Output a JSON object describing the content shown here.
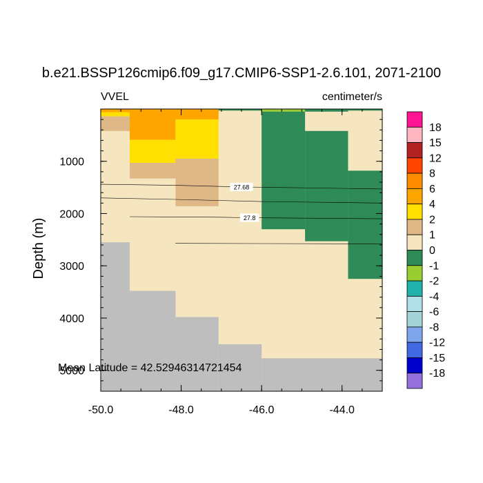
{
  "chart_data": {
    "type": "heatmap",
    "title": "b.e21.BSSP126cmip6.f09_g17.CMIP6-SSP1-2.6.101, 2071-2100",
    "left_label": "VVEL",
    "right_label": "centimeter/s",
    "ylabel": "Depth (m)",
    "xlabel": "",
    "annotation": "Mean Latitude = 42.52946314721454",
    "xlim": [
      -50.0,
      -43.0
    ],
    "ylim": [
      5400,
      0
    ],
    "x_ticks": [
      {
        "value": -50.0,
        "label": "-50.0"
      },
      {
        "value": -48.0,
        "label": "-48.0"
      },
      {
        "value": -46.0,
        "label": "-46.0"
      },
      {
        "value": -44.0,
        "label": "-44.0"
      }
    ],
    "y_ticks": [
      {
        "value": 1000,
        "label": "1000"
      },
      {
        "value": 2000,
        "label": "2000"
      },
      {
        "value": 3000,
        "label": "3000"
      },
      {
        "value": 4000,
        "label": "4000"
      },
      {
        "value": 5000,
        "label": "5000"
      }
    ],
    "colorbar": {
      "labels": [
        "18",
        "15",
        "12",
        "8",
        "6",
        "4",
        "2",
        "1",
        "0",
        "-1",
        "-2",
        "-4",
        "-6",
        "-8",
        "-12",
        "-15",
        "-18"
      ],
      "colors": [
        "#ff1493",
        "#ffb6c1",
        "#b22222",
        "#ff4500",
        "#ff8c00",
        "#ffa500",
        "#ffe000",
        "#deb887",
        "#f5e6bf",
        "#2e8b57",
        "#9acd32",
        "#20b2aa",
        "#b0e0e6",
        "#a4d4d8",
        "#7fa6ea",
        "#4169e1",
        "#0000cd",
        "#9370db"
      ]
    },
    "missing_color": "#bebebe",
    "x_edges": [
      -50.0,
      -49.28,
      -48.14,
      -47.07,
      -46.0,
      -44.92,
      -43.85,
      -43.0
    ],
    "cells": [
      {
        "x": [
          -50.0,
          -43.0
        ],
        "y": [
          0,
          5400
        ],
        "level": "0 to 1"
      },
      {
        "x": [
          -50.0,
          -49.28
        ],
        "y": [
          0,
          60
        ],
        "level": "4 to 6"
      },
      {
        "x": [
          -50.0,
          -49.28
        ],
        "y": [
          60,
          140
        ],
        "level": "2 to 4"
      },
      {
        "x": [
          -50.0,
          -49.28
        ],
        "y": [
          140,
          420
        ],
        "level": "1 to 2"
      },
      {
        "x": [
          -49.28,
          -48.14
        ],
        "y": [
          0,
          590
        ],
        "level": "4 to 6"
      },
      {
        "x": [
          -49.28,
          -48.14
        ],
        "y": [
          590,
          1030
        ],
        "level": "2 to 4"
      },
      {
        "x": [
          -49.28,
          -48.14
        ],
        "y": [
          1030,
          1330
        ],
        "level": "1 to 2"
      },
      {
        "x": [
          -48.14,
          -47.07
        ],
        "y": [
          0,
          200
        ],
        "level": "4 to 6"
      },
      {
        "x": [
          -48.14,
          -47.07
        ],
        "y": [
          200,
          950
        ],
        "level": "2 to 4"
      },
      {
        "x": [
          -48.14,
          -47.07
        ],
        "y": [
          950,
          1860
        ],
        "level": "1 to 2"
      },
      {
        "x": [
          -47.07,
          -46.0
        ],
        "y": [
          0,
          30
        ],
        "level": "-1 to 0"
      },
      {
        "x": [
          -46.0,
          -44.92
        ],
        "y": [
          0,
          50
        ],
        "level": "-2 to -1"
      },
      {
        "x": [
          -46.0,
          -44.92
        ],
        "y": [
          50,
          2300
        ],
        "level": "-1 to 0"
      },
      {
        "x": [
          -44.92,
          -43.85
        ],
        "y": [
          0,
          50
        ],
        "level": "-1 to 0"
      },
      {
        "x": [
          -44.92,
          -43.85
        ],
        "y": [
          420,
          2530
        ],
        "level": "-1 to 0"
      },
      {
        "x": [
          -43.85,
          -43.0
        ],
        "y": [
          0,
          30
        ],
        "level": "-1 to 0"
      },
      {
        "x": [
          -43.85,
          -43.0
        ],
        "y": [
          1180,
          3250
        ],
        "level": "-1 to 0"
      }
    ],
    "missing": [
      {
        "x": [
          -50.0,
          -49.28
        ],
        "y": [
          2550,
          5400
        ]
      },
      {
        "x": [
          -49.28,
          -48.14
        ],
        "y": [
          3480,
          5400
        ]
      },
      {
        "x": [
          -48.14,
          -47.07
        ],
        "y": [
          3980,
          5400
        ]
      },
      {
        "x": [
          -47.07,
          -46.0
        ],
        "y": [
          4500,
          5400
        ]
      },
      {
        "x": [
          -46.0,
          -43.0
        ],
        "y": [
          4770,
          5400
        ]
      }
    ],
    "contours": [
      {
        "label": "27.68",
        "label_x": -46.5,
        "points": [
          [
            -50.0,
            1440
          ],
          [
            -48.14,
            1460
          ],
          [
            -46.5,
            1490
          ],
          [
            -43.0,
            1530
          ]
        ]
      },
      {
        "label": "",
        "points": [
          [
            -50.0,
            1700
          ],
          [
            -48.14,
            1730
          ],
          [
            -46.0,
            1770
          ],
          [
            -43.0,
            1800
          ]
        ]
      },
      {
        "label": "27.8",
        "label_x": -46.3,
        "points": [
          [
            -49.28,
            2060
          ],
          [
            -47.07,
            2070
          ],
          [
            -46.3,
            2080
          ],
          [
            -43.0,
            2100
          ]
        ]
      },
      {
        "label": "",
        "points": [
          [
            -48.14,
            2570
          ],
          [
            -46.0,
            2575
          ],
          [
            -43.0,
            2580
          ]
        ]
      }
    ]
  }
}
